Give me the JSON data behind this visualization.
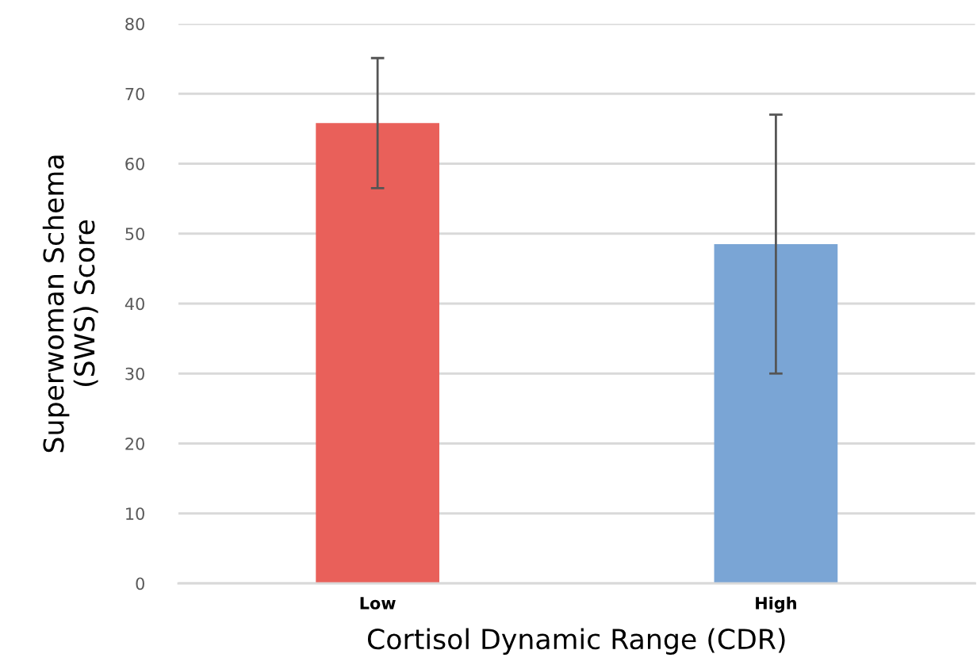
{
  "chart_data": {
    "type": "bar",
    "xlabel": "Cortisol Dynamic Range (CDR)",
    "ylabel": "Superwoman Schema\n(SWS) Score",
    "categories": [
      "Low",
      "High"
    ],
    "values": [
      65.8,
      48.5
    ],
    "colors": [
      "#e9605a",
      "#7aa5d5"
    ],
    "errors": [
      9.3,
      18.5
    ],
    "ylim": [
      0,
      80
    ],
    "yticks": [
      0,
      10,
      20,
      30,
      40,
      50,
      60,
      70,
      80
    ],
    "grid": "y"
  }
}
